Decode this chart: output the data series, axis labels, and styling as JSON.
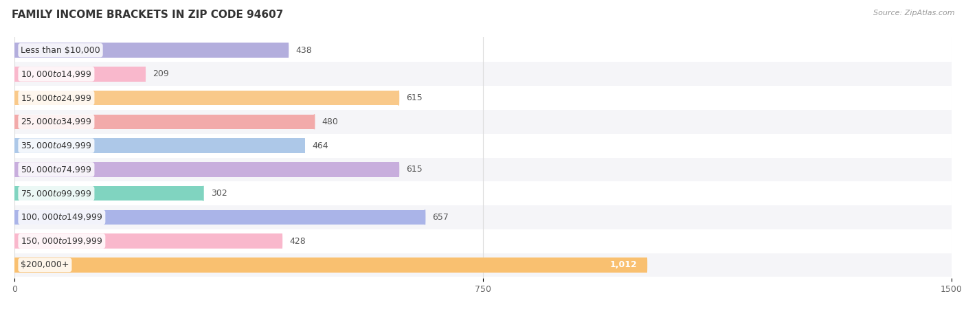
{
  "title": "FAMILY INCOME BRACKETS IN ZIP CODE 94607",
  "source": "Source: ZipAtlas.com",
  "categories": [
    "Less than $10,000",
    "$10,000 to $14,999",
    "$15,000 to $24,999",
    "$25,000 to $34,999",
    "$35,000 to $49,999",
    "$50,000 to $74,999",
    "$75,000 to $99,999",
    "$100,000 to $149,999",
    "$150,000 to $199,999",
    "$200,000+"
  ],
  "values": [
    438,
    209,
    615,
    480,
    464,
    615,
    302,
    657,
    428,
    1012
  ],
  "bar_colors": [
    "#b3aedd",
    "#f9b8cc",
    "#f9c98a",
    "#f2aaaa",
    "#adc8e8",
    "#c8aedd",
    "#80d4c0",
    "#aab4e8",
    "#f9b8cc",
    "#f9c070"
  ],
  "xlim": [
    0,
    1500
  ],
  "xticks": [
    0,
    750,
    1500
  ],
  "background_color": "#ffffff",
  "title_fontsize": 11,
  "label_fontsize": 9,
  "value_fontsize": 9,
  "bar_height": 0.62
}
